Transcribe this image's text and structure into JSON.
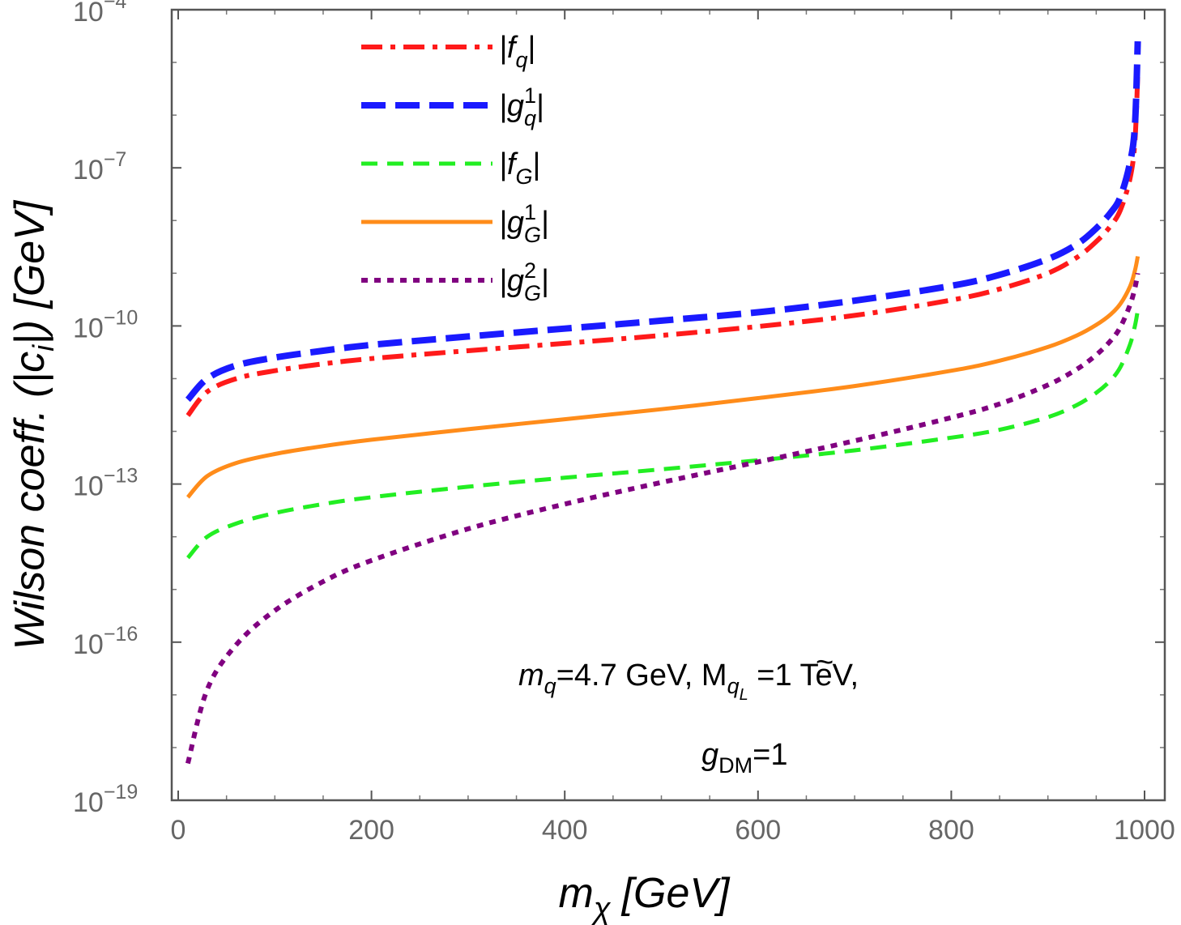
{
  "chart_data": {
    "type": "line",
    "title": "",
    "xlabel": "m",
    "xlabel_sub": "χ",
    "xlabel_unit": "[GeV]",
    "ylabel": "Wilson coeff. (|c",
    "ylabel_sub": "i",
    "ylabel_end": "|) [GeV]",
    "yscale": "log",
    "xlim": [
      0,
      1000
    ],
    "ylim_exp": [
      -19,
      -4
    ],
    "x_ticks": [
      0,
      200,
      400,
      600,
      800,
      1000
    ],
    "y_ticks": [
      {
        "exp": -19,
        "base": "10",
        "sup": "−19"
      },
      {
        "exp": -16,
        "base": "10",
        "sup": "−16"
      },
      {
        "exp": -13,
        "base": "10",
        "sup": "−13"
      },
      {
        "exp": -10,
        "base": "10",
        "sup": "−10"
      },
      {
        "exp": -7,
        "base": "10",
        "sup": "−7"
      },
      {
        "exp": -4,
        "base": "10",
        "sup": "−4"
      }
    ],
    "x": [
      10,
      30,
      60,
      100,
      150,
      200,
      300,
      400,
      500,
      600,
      700,
      800,
      850,
      900,
      930,
      950,
      965,
      975,
      985,
      990,
      993
    ],
    "series": [
      {
        "name": "|f_q|",
        "label_main": "|f",
        "label_sub": "q",
        "label_sup": "",
        "label_end": "|",
        "color": "#ff1a1a",
        "style": "dashdot",
        "log10_values": [
          -11.7,
          -11.25,
          -11.0,
          -10.85,
          -10.72,
          -10.62,
          -10.47,
          -10.33,
          -10.18,
          -10.01,
          -9.8,
          -9.51,
          -9.3,
          -9.0,
          -8.7,
          -8.4,
          -8.1,
          -7.8,
          -7.2,
          -6.5,
          -5.2
        ]
      },
      {
        "name": "|g_q^1|",
        "label_main": "|g",
        "label_sub": "q",
        "label_sup": "1",
        "label_end": "|",
        "color": "#1a1aff",
        "style": "longdash",
        "log10_values": [
          -11.4,
          -11.0,
          -10.75,
          -10.6,
          -10.47,
          -10.36,
          -10.2,
          -10.05,
          -9.9,
          -9.74,
          -9.52,
          -9.24,
          -9.03,
          -8.73,
          -8.45,
          -8.15,
          -7.85,
          -7.55,
          -6.9,
          -6.2,
          -4.6
        ]
      },
      {
        "name": "|f_G|",
        "label_main": "|f",
        "label_sub": "G",
        "label_sup": "",
        "label_end": "|",
        "color": "#22ee22",
        "style": "dash",
        "log10_values": [
          -14.4,
          -14.0,
          -13.75,
          -13.55,
          -13.38,
          -13.25,
          -13.05,
          -12.88,
          -12.72,
          -12.55,
          -12.36,
          -12.12,
          -11.97,
          -11.73,
          -11.5,
          -11.27,
          -11.03,
          -10.78,
          -10.35,
          -10.0,
          -9.7
        ]
      },
      {
        "name": "|g_G^1|",
        "label_main": "|g",
        "label_sub": "G",
        "label_sup": "1",
        "label_end": "|",
        "color": "#ff8c1a",
        "style": "solid",
        "log10_values": [
          -13.25,
          -12.85,
          -12.6,
          -12.43,
          -12.28,
          -12.16,
          -11.96,
          -11.77,
          -11.58,
          -11.37,
          -11.14,
          -10.85,
          -10.66,
          -10.4,
          -10.18,
          -9.98,
          -9.78,
          -9.58,
          -9.25,
          -8.95,
          -8.68
        ]
      },
      {
        "name": "|g_G^2|",
        "label_main": "|g",
        "label_sub": "G",
        "label_sup": "2",
        "label_end": "|",
        "color": "#800080",
        "style": "dot",
        "log10_values": [
          -18.3,
          -16.9,
          -16.05,
          -15.4,
          -14.85,
          -14.45,
          -13.85,
          -13.38,
          -12.97,
          -12.58,
          -12.18,
          -11.74,
          -11.48,
          -11.12,
          -10.82,
          -10.55,
          -10.28,
          -10.02,
          -9.6,
          -9.28,
          -9.0
        ]
      }
    ],
    "annotations": {
      "line1_m": "m",
      "line1_msub": "q",
      "line1_mid": "=4.7 GeV, M",
      "line1_Msub_tilde": "~",
      "line1_Msub": "q",
      "line1_Msubsub": "L",
      "line1_end": " =1 TeV,",
      "line2_g": "g",
      "line2_gsub": "DM",
      "line2_end": "=1"
    }
  }
}
